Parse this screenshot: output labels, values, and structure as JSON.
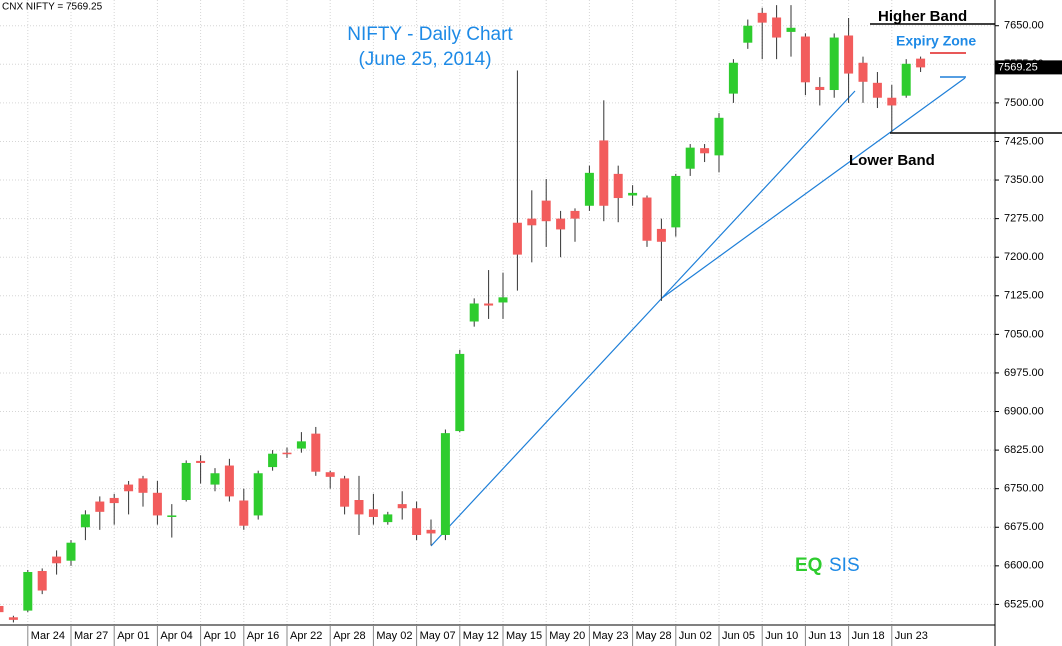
{
  "chart_data": {
    "type": "candlestick",
    "header": "CNX NIFTY = 7569.25",
    "title": "NIFTY - Daily Chart",
    "subtitle": "(June 25, 2014)",
    "last_price_label": "7569.25",
    "annotations": {
      "higher_band": "Higher Band",
      "expiry_zone": "Expiry Zone",
      "lower_band": "Lower Band",
      "brand_left": "EQ",
      "brand_right": "SIS"
    },
    "up_color": "#2ecc2e",
    "down_color": "#f25c5c",
    "grid": true,
    "categories": [
      null,
      null,
      "Mar 24",
      null,
      null,
      "Mar 27",
      null,
      null,
      "Apr 01",
      null,
      null,
      "Apr 04",
      null,
      null,
      "Apr 10",
      null,
      null,
      "Apr 16",
      null,
      null,
      "Apr 22",
      null,
      null,
      "Apr 28",
      null,
      null,
      "May 02",
      null,
      null,
      "May 07",
      null,
      null,
      "May 12",
      null,
      null,
      "May 15",
      null,
      null,
      "May 20",
      null,
      null,
      "May 23",
      null,
      null,
      "May 28",
      null,
      null,
      "Jun 02",
      null,
      null,
      "Jun 05",
      null,
      null,
      "Jun 10",
      null,
      null,
      "Jun 13",
      null,
      null,
      "Jun 18",
      null,
      null,
      "Jun 23",
      null,
      null
    ],
    "open": [
      6522,
      6500,
      6513,
      6590,
      6618,
      6610,
      6675,
      6725,
      6732,
      6758,
      6770,
      6742,
      6695,
      6728,
      6804,
      6758,
      6795,
      6727,
      6698,
      6792,
      6820,
      6828,
      6857,
      6782,
      6770,
      6728,
      6710,
      6685,
      6720,
      6712,
      6670,
      6660,
      6862,
      7075,
      7110,
      7112,
      7267,
      7275,
      7310,
      7275,
      7290,
      7300,
      7427,
      7362,
      7320,
      7316,
      7255,
      7258,
      7372,
      7412,
      7398,
      7518,
      7617,
      7675,
      7666,
      7638,
      7629,
      7531,
      7525,
      7631,
      7578,
      7539,
      7510,
      7514,
      7586
    ],
    "high": [
      6530,
      6503,
      6592,
      6595,
      6630,
      6650,
      6708,
      6735,
      6740,
      6765,
      6775,
      6765,
      6720,
      6805,
      6815,
      6790,
      6808,
      6750,
      6785,
      6825,
      6830,
      6860,
      6870,
      6785,
      6775,
      6775,
      6740,
      6705,
      6745,
      6725,
      6690,
      6865,
      7020,
      7120,
      7175,
      7170,
      7563,
      7330,
      7352,
      7290,
      7295,
      7378,
      7505,
      7378,
      7340,
      7320,
      7275,
      7362,
      7420,
      7420,
      7480,
      7585,
      7662,
      7685,
      7690,
      7690,
      7635,
      7550,
      7635,
      7665,
      7590,
      7560,
      7535,
      7585,
      7590
    ],
    "low": [
      6505,
      6490,
      6510,
      6545,
      6583,
      6600,
      6650,
      6670,
      6680,
      6700,
      6715,
      6680,
      6655,
      6725,
      6760,
      6745,
      6725,
      6670,
      6690,
      6785,
      6810,
      6820,
      6775,
      6750,
      6700,
      6660,
      6680,
      6680,
      6690,
      6650,
      6640,
      6650,
      6860,
      7065,
      7080,
      7080,
      7135,
      7190,
      7220,
      7200,
      7230,
      7290,
      7270,
      7268,
      7300,
      7220,
      7115,
      7240,
      7358,
      7385,
      7365,
      7500,
      7605,
      7585,
      7585,
      7590,
      7515,
      7495,
      7510,
      7500,
      7500,
      7490,
      7440,
      7510,
      7560
    ],
    "close": [
      6510,
      6495,
      6588,
      6552,
      6605,
      6645,
      6700,
      6705,
      6722,
      6745,
      6742,
      6698,
      6698,
      6800,
      6800,
      6780,
      6735,
      6678,
      6780,
      6818,
      6817,
      6842,
      6783,
      6773,
      6715,
      6700,
      6695,
      6700,
      6712,
      6660,
      6663,
      6858,
      7012,
      7110,
      7106,
      7122,
      7205,
      7262,
      7270,
      7254,
      7275,
      7364,
      7300,
      7315,
      7325,
      7232,
      7230,
      7358,
      7413,
      7402,
      7471,
      7578,
      7650,
      7656,
      7627,
      7646,
      7540,
      7525,
      7627,
      7557,
      7541,
      7510,
      7495,
      7576,
      7569
    ],
    "ylim": [
      6485,
      7700
    ],
    "yticks": [
      {
        "value": 6525,
        "label": "6525.00"
      },
      {
        "value": 6600,
        "label": "6600.00"
      },
      {
        "value": 6675,
        "label": "6675.00"
      },
      {
        "value": 6750,
        "label": "6750.00"
      },
      {
        "value": 6825,
        "label": "6825.00"
      },
      {
        "value": 6900,
        "label": "6900.00"
      },
      {
        "value": 6975,
        "label": "6975.00"
      },
      {
        "value": 7050,
        "label": "7050.00"
      },
      {
        "value": 7125,
        "label": "7125.00"
      },
      {
        "value": 7200,
        "label": "7200.00"
      },
      {
        "value": 7275,
        "label": "7275.00"
      },
      {
        "value": 7350,
        "label": "7350.00"
      },
      {
        "value": 7425,
        "label": "7425.00"
      },
      {
        "value": 7500,
        "label": "7500.00"
      },
      {
        "value": 7575,
        "label": "7575.00"
      },
      {
        "value": 7650,
        "label": "7650.00"
      }
    ]
  }
}
